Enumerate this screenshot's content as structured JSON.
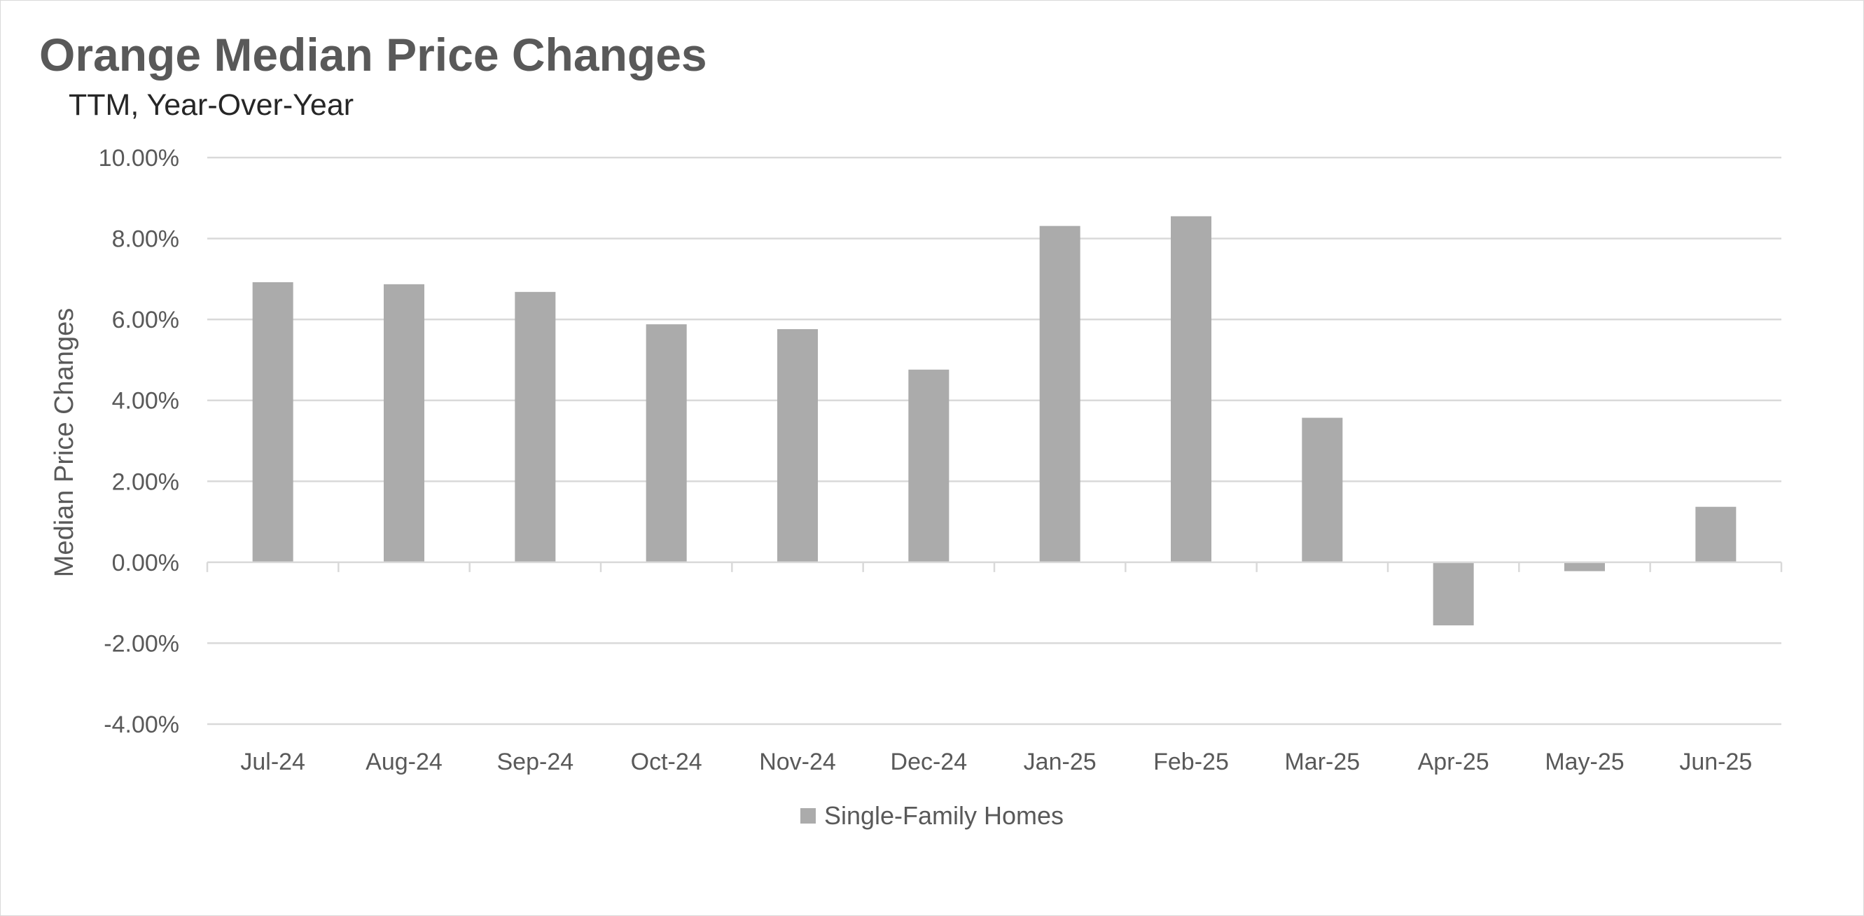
{
  "colors": {
    "bar": "#ababab",
    "grid": "#d9d9d9",
    "text": "#595959"
  },
  "chart_data": {
    "type": "bar",
    "title": "Orange Median Price Changes",
    "subtitle": "TTM, Year-Over-Year",
    "ylabel": "Median Price Changes",
    "xlabel": "",
    "ylim": [
      -4,
      10
    ],
    "ytick_step": 2,
    "ytick_labels": [
      "10.00%",
      "8.00%",
      "6.00%",
      "4.00%",
      "2.00%",
      "0.00%",
      "-2.00%",
      "-4.00%"
    ],
    "categories": [
      "Jul-24",
      "Aug-24",
      "Sep-24",
      "Oct-24",
      "Nov-24",
      "Dec-24",
      "Jan-25",
      "Feb-25",
      "Mar-25",
      "Apr-25",
      "May-25",
      "Jun-25"
    ],
    "series": [
      {
        "name": "Single-Family Homes",
        "values": [
          6.92,
          6.87,
          6.68,
          5.88,
          5.76,
          4.76,
          8.31,
          8.55,
          3.57,
          -1.56,
          -0.22,
          1.37
        ]
      }
    ],
    "grid": true,
    "legend_position": "bottom"
  }
}
